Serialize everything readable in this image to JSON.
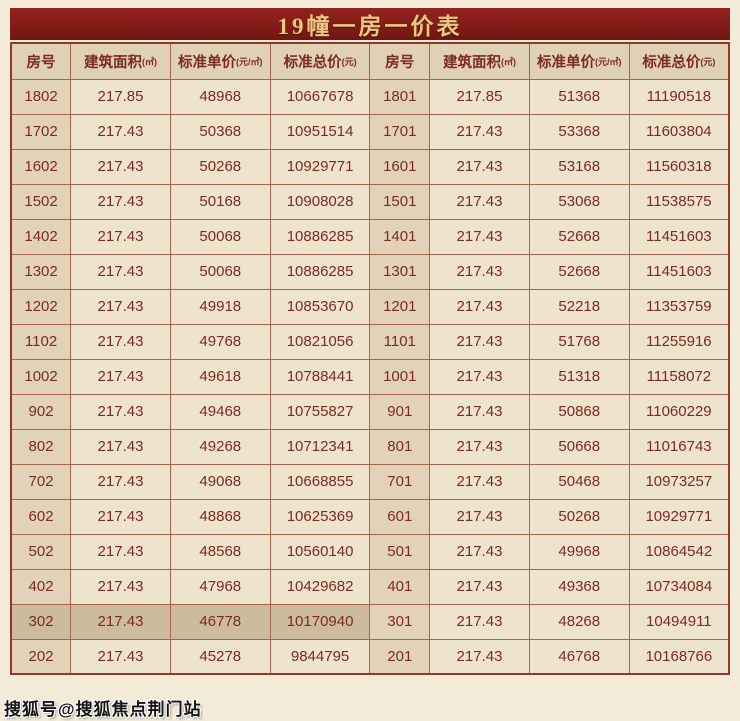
{
  "title": "19幢一房一价表",
  "watermark": "搜狐号@搜狐焦点荆门站",
  "colors": {
    "page_bg": "#f3ead8",
    "title_bg": "#821c17",
    "title_text": "#ecc77e",
    "cell_text": "#7c2b1f",
    "border": "#a9654c",
    "header_bg": "#e0d0b6",
    "room_col_bg": "#e2d3b8",
    "cell_bg": "#eee3cd",
    "highlight_bg": "#cdbb9e"
  },
  "table": {
    "headers": [
      {
        "label": "房号",
        "unit": ""
      },
      {
        "label": "建筑面积",
        "unit": "(㎡)"
      },
      {
        "label": "标准单价",
        "unit": "(元/㎡)"
      },
      {
        "label": "标准总价",
        "unit": "(元)"
      },
      {
        "label": "房号",
        "unit": ""
      },
      {
        "label": "建筑面积",
        "unit": "(㎡)"
      },
      {
        "label": "标准单价",
        "unit": "(元/㎡)"
      },
      {
        "label": "标准总价",
        "unit": "(元)"
      }
    ],
    "rows": [
      [
        "1802",
        "217.85",
        "48968",
        "10667678",
        "1801",
        "217.85",
        "51368",
        "11190518"
      ],
      [
        "1702",
        "217.43",
        "50368",
        "10951514",
        "1701",
        "217.43",
        "53368",
        "11603804"
      ],
      [
        "1602",
        "217.43",
        "50268",
        "10929771",
        "1601",
        "217.43",
        "53168",
        "11560318"
      ],
      [
        "1502",
        "217.43",
        "50168",
        "10908028",
        "1501",
        "217.43",
        "53068",
        "11538575"
      ],
      [
        "1402",
        "217.43",
        "50068",
        "10886285",
        "1401",
        "217.43",
        "52668",
        "11451603"
      ],
      [
        "1302",
        "217.43",
        "50068",
        "10886285",
        "1301",
        "217.43",
        "52668",
        "11451603"
      ],
      [
        "1202",
        "217.43",
        "49918",
        "10853670",
        "1201",
        "217.43",
        "52218",
        "11353759"
      ],
      [
        "1102",
        "217.43",
        "49768",
        "10821056",
        "1101",
        "217.43",
        "51768",
        "11255916"
      ],
      [
        "1002",
        "217.43",
        "49618",
        "10788441",
        "1001",
        "217.43",
        "51318",
        "11158072"
      ],
      [
        "902",
        "217.43",
        "49468",
        "10755827",
        "901",
        "217.43",
        "50868",
        "11060229"
      ],
      [
        "802",
        "217.43",
        "49268",
        "10712341",
        "801",
        "217.43",
        "50668",
        "11016743"
      ],
      [
        "702",
        "217.43",
        "49068",
        "10668855",
        "701",
        "217.43",
        "50468",
        "10973257"
      ],
      [
        "602",
        "217.43",
        "48868",
        "10625369",
        "601",
        "217.43",
        "50268",
        "10929771"
      ],
      [
        "502",
        "217.43",
        "48568",
        "10560140",
        "501",
        "217.43",
        "49968",
        "10864542"
      ],
      [
        "402",
        "217.43",
        "47968",
        "10429682",
        "401",
        "217.43",
        "49368",
        "10734084"
      ],
      [
        "302",
        "217.43",
        "46778",
        "10170940",
        "301",
        "217.43",
        "48268",
        "10494911"
      ],
      [
        "202",
        "217.43",
        "45278",
        "9844795",
        "201",
        "217.43",
        "46768",
        "10168766"
      ]
    ],
    "highlight": {
      "row": 15,
      "cols": [
        0,
        1,
        2,
        3
      ]
    }
  }
}
